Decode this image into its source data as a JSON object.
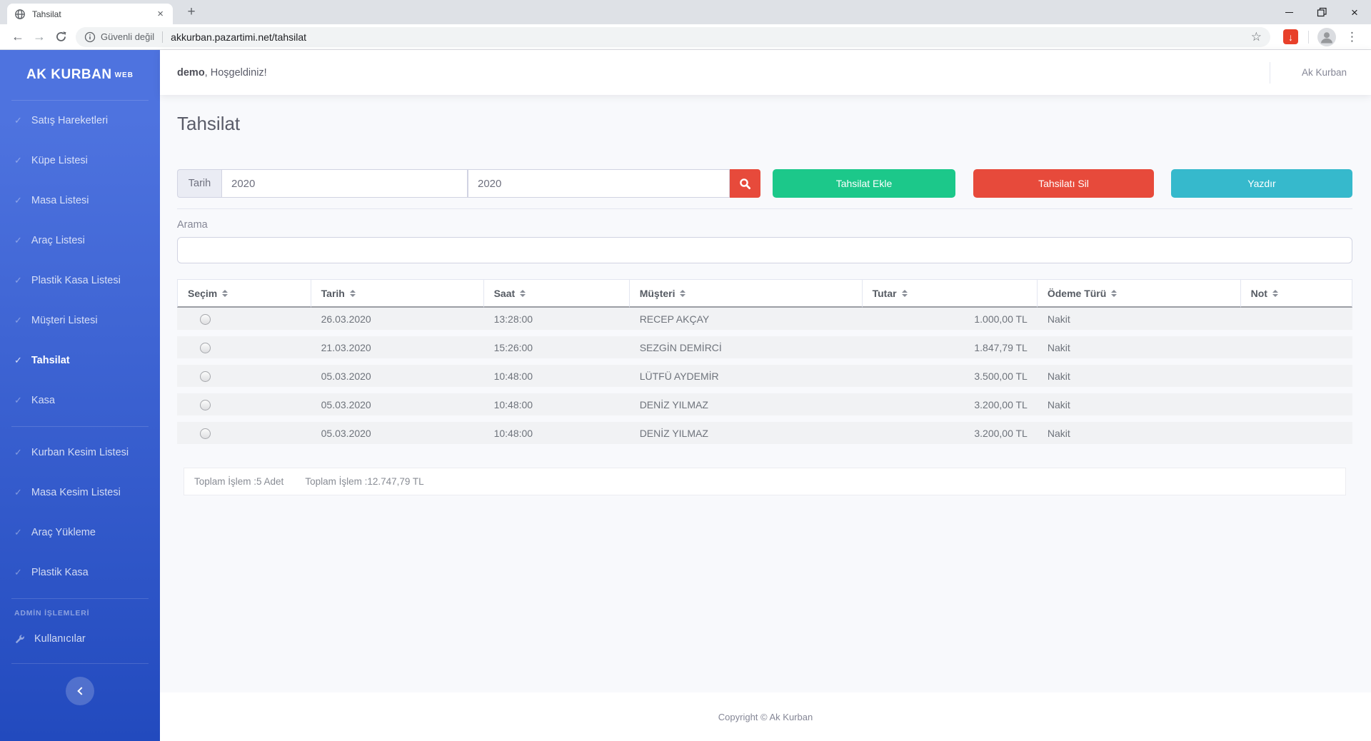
{
  "browser": {
    "tab_title": "Tahsilat",
    "new_tab_glyph": "+",
    "tab_close_glyph": "×",
    "icons": {
      "back": "←",
      "forward": "→",
      "star": "☆",
      "extension_arrow": "↓",
      "kebab": "⋮",
      "window_close": "×"
    },
    "address": {
      "security_text": "Güvenli değil",
      "url": "akkurban.pazartimi.net/tahsilat"
    }
  },
  "sidebar": {
    "brand": "AK KURBAN",
    "brand_sup": "WEB",
    "groups": [
      {
        "items": [
          {
            "label": "Satış Hareketleri",
            "active": false
          },
          {
            "label": "Küpe Listesi",
            "active": false
          },
          {
            "label": "Masa Listesi",
            "active": false
          },
          {
            "label": "Araç Listesi",
            "active": false
          },
          {
            "label": "Plastik Kasa Listesi",
            "active": false
          },
          {
            "label": "Müşteri Listesi",
            "active": false
          },
          {
            "label": "Tahsilat",
            "active": true
          },
          {
            "label": "Kasa",
            "active": false
          }
        ]
      },
      {
        "items": [
          {
            "label": "Kurban Kesim Listesi",
            "active": false
          },
          {
            "label": "Masa Kesim Listesi",
            "active": false
          },
          {
            "label": "Araç Yükleme",
            "active": false
          },
          {
            "label": "Plastik Kasa",
            "active": false
          }
        ]
      }
    ],
    "admin_heading": "ADMİN İŞLEMLERİ",
    "admin_items": [
      {
        "label": "Kullanıcılar",
        "icon": "wrench-icon"
      }
    ]
  },
  "topbar": {
    "username": "demo",
    "welcome_suffix": ", Hoşgeldiniz!",
    "account": "Ak Kurban"
  },
  "page": {
    "title": "Tahsilat",
    "filter": {
      "label": "Tarih",
      "from": "2020",
      "to": "2020"
    },
    "actions": {
      "add": "Tahsilat Ekle",
      "delete": "Tahsilatı Sil",
      "print": "Yazdır"
    },
    "search_label": "Arama",
    "search_value": ""
  },
  "table": {
    "columns": [
      "Seçim",
      "Tarih",
      "Saat",
      "Müşteri",
      "Tutar",
      "Ödeme Türü",
      "Not"
    ],
    "rows": [
      {
        "tarih": "26.03.2020",
        "saat": "13:28:00",
        "musteri": "RECEP AKÇAY",
        "tutar": "1.000,00 TL",
        "odeme": "Nakit",
        "not": ""
      },
      {
        "tarih": "21.03.2020",
        "saat": "15:26:00",
        "musteri": "SEZGİN DEMİRCİ",
        "tutar": "1.847,79 TL",
        "odeme": "Nakit",
        "not": ""
      },
      {
        "tarih": "05.03.2020",
        "saat": "10:48:00",
        "musteri": "LÜTFÜ AYDEMİR",
        "tutar": "3.500,00 TL",
        "odeme": "Nakit",
        "not": ""
      },
      {
        "tarih": "05.03.2020",
        "saat": "10:48:00",
        "musteri": "DENİZ YILMAZ",
        "tutar": "3.200,00 TL",
        "odeme": "Nakit",
        "not": ""
      },
      {
        "tarih": "05.03.2020",
        "saat": "10:48:00",
        "musteri": "DENİZ YILMAZ",
        "tutar": "3.200,00 TL",
        "odeme": "Nakit",
        "not": ""
      }
    ],
    "totals": {
      "count": "Toplam İşlem :5 Adet",
      "amount": "Toplam İşlem :12.747,79 TL"
    }
  },
  "footer": {
    "copyright": "Copyright © Ak Kurban"
  },
  "colors": {
    "primary": "#4e73df",
    "primary_dark": "#224abe",
    "success": "#1cc88a",
    "danger": "#e74a3b",
    "info": "#36b9cc"
  }
}
